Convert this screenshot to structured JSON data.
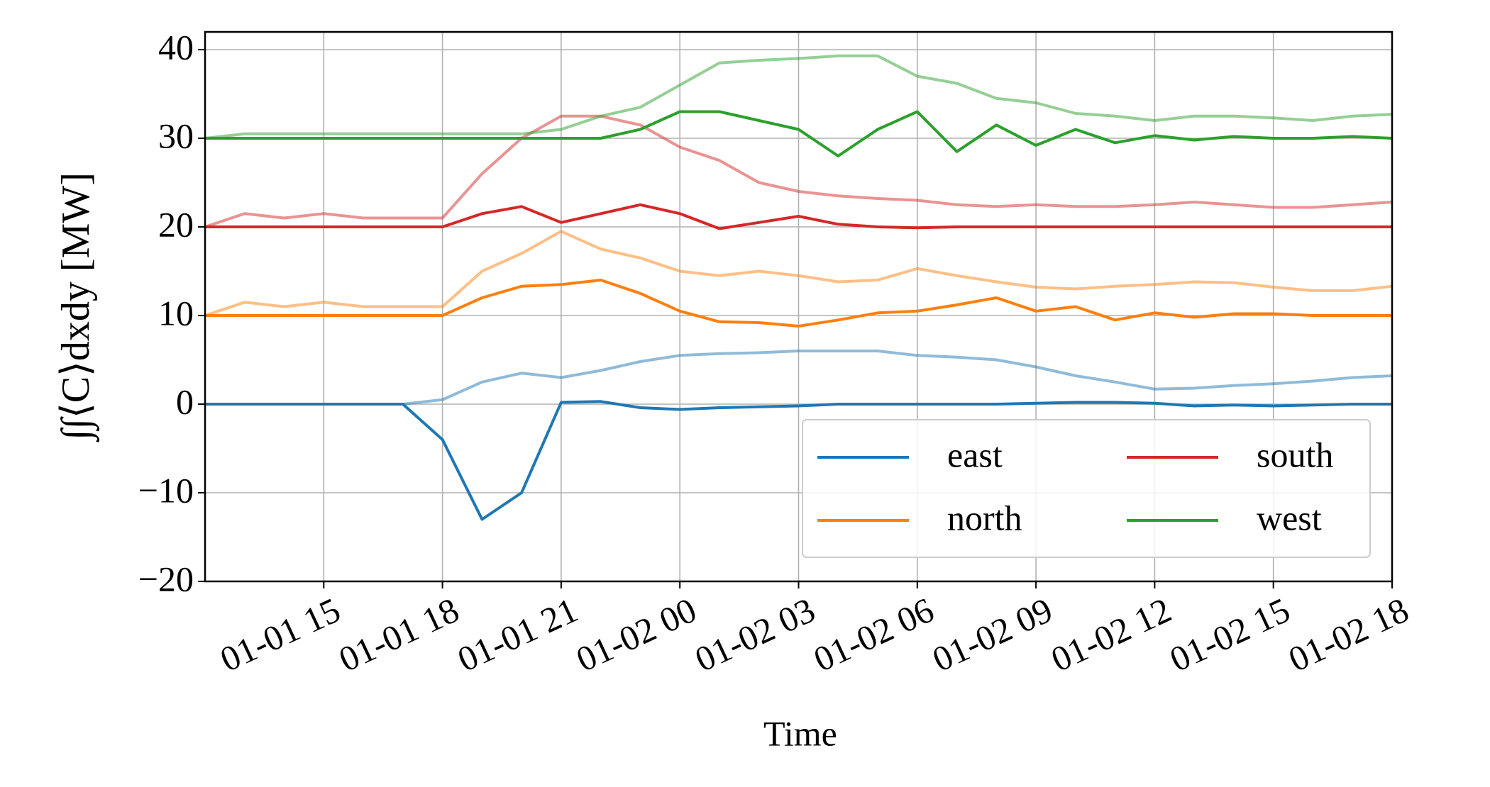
{
  "chart_data": {
    "type": "line",
    "xlabel": "Time",
    "ylabel": "∫∫⟨C⟩dxdy [MW]",
    "x": [
      "01-01 12",
      "01-01 13",
      "01-01 14",
      "01-01 15",
      "01-01 16",
      "01-01 17",
      "01-01 18",
      "01-01 19",
      "01-01 20",
      "01-01 21",
      "01-01 22",
      "01-01 23",
      "01-02 00",
      "01-02 01",
      "01-02 02",
      "01-02 03",
      "01-02 04",
      "01-02 05",
      "01-02 06",
      "01-02 07",
      "01-02 08",
      "01-02 09",
      "01-02 10",
      "01-02 11",
      "01-02 12",
      "01-02 13",
      "01-02 14",
      "01-02 15",
      "01-02 16",
      "01-02 17",
      "01-02 18"
    ],
    "xlim": [
      "01-01 12",
      "01-02 18"
    ],
    "xticks": [
      "01-01 15",
      "01-01 18",
      "01-01 21",
      "01-02 00",
      "01-02 03",
      "01-02 06",
      "01-02 09",
      "01-02 12",
      "01-02 15",
      "01-02 18"
    ],
    "ylim": [
      -20,
      42
    ],
    "yticks": [
      {
        "value": -20,
        "label": "−20"
      },
      {
        "value": -10,
        "label": "−10"
      },
      0,
      10,
      20,
      30,
      40
    ],
    "grid": true,
    "legend": "lower right",
    "series": [
      {
        "name": "east",
        "color": "#1f77b4",
        "values": [
          0,
          0,
          0,
          0,
          0,
          0,
          -4,
          -13,
          -10,
          0.2,
          0.3,
          -0.4,
          -0.6,
          -0.4,
          -0.3,
          -0.2,
          0,
          0,
          0,
          0,
          0,
          0.1,
          0.2,
          0.2,
          0.1,
          -0.2,
          -0.1,
          -0.2,
          -0.1,
          0,
          0
        ]
      },
      {
        "name": "north",
        "color": "#ff7f0e",
        "values": [
          10,
          10,
          10,
          10,
          10,
          10,
          10,
          12,
          13.3,
          13.5,
          14,
          12.5,
          10.5,
          9.3,
          9.2,
          8.8,
          9.5,
          10.3,
          10.5,
          11.2,
          12,
          10.5,
          11,
          9.5,
          10.3,
          9.8,
          10.2,
          10.2,
          10,
          10,
          10
        ]
      },
      {
        "name": "south",
        "color": "#d62728",
        "values": [
          20,
          20,
          20,
          20,
          20,
          20,
          20,
          21.5,
          22.3,
          20.5,
          21.5,
          22.5,
          21.5,
          19.8,
          20.5,
          21.2,
          20.3,
          20,
          19.9,
          20,
          20,
          20,
          20,
          20,
          20,
          20,
          20,
          20,
          20,
          20,
          20
        ]
      },
      {
        "name": "west",
        "color": "#2ca02c",
        "values": [
          30,
          30,
          30,
          30,
          30,
          30,
          30,
          30,
          30,
          30,
          30,
          31,
          33,
          33,
          32,
          31,
          28,
          31,
          33,
          28.5,
          31.5,
          29.2,
          31,
          29.5,
          30.3,
          29.8,
          30.2,
          30,
          30,
          30.2,
          30
        ]
      },
      {
        "color": "#1f77b4",
        "opacity": 0.5,
        "values": [
          0,
          0,
          0,
          0,
          0,
          0,
          0.5,
          2.5,
          3.5,
          3,
          3.8,
          4.8,
          5.5,
          5.7,
          5.8,
          6,
          6,
          6,
          5.5,
          5.3,
          5,
          4.2,
          3.2,
          2.5,
          1.7,
          1.8,
          2.1,
          2.3,
          2.6,
          3,
          3.2
        ]
      },
      {
        "color": "#ff7f0e",
        "opacity": 0.5,
        "values": [
          10,
          11.5,
          11,
          11.5,
          11,
          11,
          11,
          15,
          17,
          19.5,
          17.5,
          16.5,
          15,
          14.5,
          15,
          14.5,
          13.8,
          14,
          15.3,
          14.5,
          13.8,
          13.2,
          13,
          13.3,
          13.5,
          13.8,
          13.7,
          13.2,
          12.8,
          12.8,
          13.3
        ]
      },
      {
        "color": "#d62728",
        "opacity": 0.5,
        "values": [
          20,
          21.5,
          21,
          21.5,
          21,
          21,
          21,
          26,
          30,
          32.5,
          32.5,
          31.5,
          29,
          27.5,
          25,
          24,
          23.5,
          23.2,
          23,
          22.5,
          22.3,
          22.5,
          22.3,
          22.3,
          22.5,
          22.8,
          22.5,
          22.2,
          22.2,
          22.5,
          22.8
        ]
      },
      {
        "color": "#2ca02c",
        "opacity": 0.5,
        "values": [
          30,
          30.5,
          30.5,
          30.5,
          30.5,
          30.5,
          30.5,
          30.5,
          30.5,
          31,
          32.5,
          33.5,
          36,
          38.5,
          38.8,
          39,
          39.3,
          39.3,
          37,
          36.2,
          34.5,
          34,
          32.8,
          32.5,
          32,
          32.5,
          32.5,
          32.3,
          32,
          32.5,
          32.7
        ]
      }
    ]
  }
}
